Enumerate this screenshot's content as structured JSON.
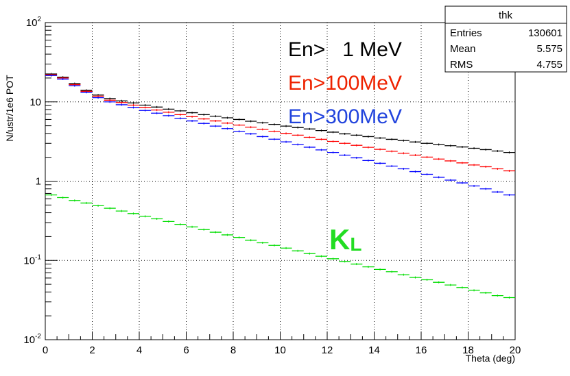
{
  "chart_data": {
    "type": "histogram",
    "title": "",
    "xlabel": "Theta (deg)",
    "ylabel": "N/ustr/1e6 POT",
    "xlim": [
      0,
      20
    ],
    "ylim": [
      0.01,
      100
    ],
    "yscale": "log",
    "grid": true,
    "x_ticks": [
      "0",
      "2",
      "4",
      "6",
      "8",
      "10",
      "12",
      "14",
      "16",
      "18",
      "20"
    ],
    "y_ticks": [
      {
        "base": "10",
        "exp": "-2"
      },
      {
        "base": "10",
        "exp": "-1"
      },
      {
        "base": "1",
        "exp": ""
      },
      {
        "base": "10",
        "exp": ""
      },
      {
        "base": "10",
        "exp": "2"
      }
    ],
    "bin_edges_start": 0,
    "bin_width": 0.5,
    "series": [
      {
        "name": "En> 1 MeV",
        "color": "#000000",
        "values": [
          22.5,
          20.5,
          17.0,
          14.0,
          12.2,
          11.0,
          10.3,
          9.7,
          9.1,
          8.6,
          8.1,
          7.7,
          7.3,
          6.9,
          6.6,
          6.3,
          6.0,
          5.7,
          5.45,
          5.2,
          4.95,
          4.75,
          4.55,
          4.35,
          4.15,
          3.95,
          3.8,
          3.65,
          3.5,
          3.37,
          3.25,
          3.12,
          3.0,
          2.9,
          2.8,
          2.7,
          2.6,
          2.5,
          2.4,
          2.3
        ]
      },
      {
        "name": "En>100MeV",
        "color": "#ff0000",
        "values": [
          22.0,
          20.0,
          16.5,
          13.6,
          11.8,
          10.5,
          9.8,
          9.1,
          8.5,
          7.9,
          7.4,
          6.9,
          6.5,
          6.1,
          5.75,
          5.4,
          5.1,
          4.8,
          4.5,
          4.25,
          4.0,
          3.8,
          3.57,
          3.37,
          3.17,
          3.0,
          2.83,
          2.67,
          2.52,
          2.38,
          2.25,
          2.13,
          2.01,
          1.9,
          1.8,
          1.7,
          1.6,
          1.52,
          1.43,
          1.35
        ]
      },
      {
        "name": "En>300MeV",
        "color": "#0000ff",
        "values": [
          21.5,
          19.4,
          16.0,
          13.2,
          11.3,
          10.0,
          9.2,
          8.5,
          7.8,
          7.2,
          6.7,
          6.2,
          5.75,
          5.35,
          4.95,
          4.6,
          4.25,
          3.95,
          3.65,
          3.38,
          3.13,
          2.9,
          2.68,
          2.48,
          2.3,
          2.13,
          1.97,
          1.82,
          1.68,
          1.55,
          1.43,
          1.32,
          1.22,
          1.12,
          1.03,
          0.95,
          0.87,
          0.8,
          0.73,
          0.67
        ]
      },
      {
        "name": "KL",
        "color": "#00dd00",
        "values": [
          0.67,
          0.62,
          0.57,
          0.53,
          0.49,
          0.455,
          0.42,
          0.39,
          0.36,
          0.335,
          0.31,
          0.285,
          0.265,
          0.245,
          0.227,
          0.21,
          0.195,
          0.18,
          0.167,
          0.155,
          0.143,
          0.132,
          0.122,
          0.113,
          0.105,
          0.097,
          0.09,
          0.083,
          0.077,
          0.072,
          0.066,
          0.061,
          0.057,
          0.053,
          0.049,
          0.0455,
          0.042,
          0.039,
          0.036,
          0.034
        ]
      }
    ],
    "annotations": [
      {
        "text": "En>   1 MeV",
        "color": "#000000"
      },
      {
        "text": "En>100MeV",
        "color": "#ee2200"
      },
      {
        "text": "En>300MeV",
        "color": "#2244dd"
      }
    ],
    "kl_label": {
      "main": "K",
      "sub": "L",
      "color": "#22dd22"
    },
    "stats_box": {
      "title": "thk",
      "rows": [
        {
          "label": "Entries",
          "value": "130601"
        },
        {
          "label": "Mean",
          "value": "5.575"
        },
        {
          "label": "RMS",
          "value": "4.755"
        }
      ]
    }
  }
}
